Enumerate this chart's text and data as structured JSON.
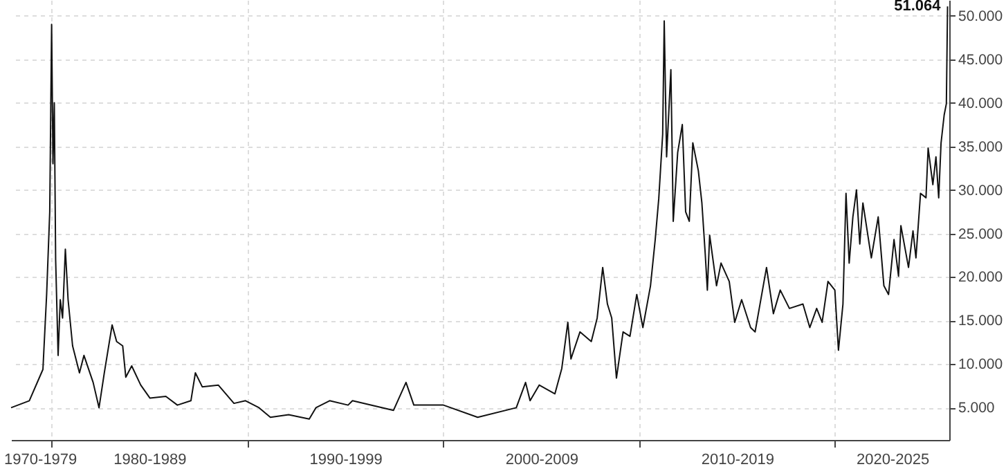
{
  "chart_data": {
    "type": "line",
    "color": "#111111",
    "grid": true,
    "xlim": [
      "1977-12-10",
      "2025-10-30"
    ],
    "ylim": [
      1.3,
      51.8
    ],
    "xticks": [
      {
        "value": "1979-06-01",
        "label": "1970-1979"
      },
      {
        "value": "1980-01-01",
        "label": null
      },
      {
        "value": "1985-01-01",
        "label": "1980-1989"
      },
      {
        "value": "1990-01-01",
        "label": null
      },
      {
        "value": "1995-01-01",
        "label": "1990-1999"
      },
      {
        "value": "2000-01-01",
        "label": null
      },
      {
        "value": "2005-01-01",
        "label": "2000-2009"
      },
      {
        "value": "2010-01-01",
        "label": null
      },
      {
        "value": "2015-01-01",
        "label": "2010-2019"
      },
      {
        "value": "2020-01-01",
        "label": null
      },
      {
        "value": "2022-12-01",
        "label": "2020-2025"
      }
    ],
    "yticks": [
      {
        "value": 5,
        "label": "5.000"
      },
      {
        "value": 10,
        "label": "10.000"
      },
      {
        "value": 15,
        "label": "15.000"
      },
      {
        "value": 20,
        "label": "20.000"
      },
      {
        "value": 25,
        "label": "25.000"
      },
      {
        "value": 30,
        "label": "30.000"
      },
      {
        "value": 35,
        "label": "35.000"
      },
      {
        "value": 40,
        "label": "40.000"
      },
      {
        "value": 45,
        "label": "45.000"
      },
      {
        "value": 50,
        "label": "50.000"
      }
    ],
    "annotations": [
      {
        "text": "51.064",
        "x": "2025-09-28",
        "y": 51.064
      }
    ],
    "x": [
      "1977-12-10",
      "1978-11-15",
      "1979-07-27",
      "1979-10-04",
      "1979-12-01",
      "1980-01-05",
      "1980-01-30",
      "1980-02-24",
      "1980-03-20",
      "1980-05-05",
      "1980-06-14",
      "1980-07-27",
      "1980-09-17",
      "1980-11-07",
      "1981-01-30",
      "1981-06-07",
      "1981-08-30",
      "1982-02-17",
      "1982-06-07",
      "1982-09-13",
      "1983-02-06",
      "1983-05-01",
      "1983-08-22",
      "1983-10-19",
      "1984-02-06",
      "1984-07-23",
      "1985-01-12",
      "1985-11-03",
      "1986-06-07",
      "1987-02-14",
      "1987-05-08",
      "1987-09-13",
      "1988-07-08",
      "1989-04-27",
      "1989-11-28",
      "1990-08-07",
      "1991-03-07",
      "1992-02-10",
      "1993-02-28",
      "1993-07-02",
      "1994-03-15",
      "1995-02-21",
      "1995-05-15",
      "1997-06-18",
      "1998-02-06",
      "1998-07-02",
      "2000-01-05",
      "2001-10-04",
      "2003-09-24",
      "2004-03-15",
      "2004-06-07",
      "2004-11-24",
      "2005-09-13",
      "2006-01-19",
      "2006-05-12",
      "2006-07-09",
      "2006-12-24",
      "2007-07-23",
      "2007-11-10",
      "2008-02-21",
      "2008-05-19",
      "2008-08-07",
      "2008-11-03",
      "2009-03-07",
      "2009-07-13",
      "2009-11-17",
      "2010-03-11",
      "2010-07-31",
      "2010-10-27",
      "2011-01-01",
      "2011-03-15",
      "2011-04-13",
      "2011-05-27",
      "2011-08-15",
      "2011-09-28",
      "2011-12-20",
      "2012-03-15",
      "2012-05-16",
      "2012-07-23",
      "2012-09-27",
      "2013-01-08",
      "2013-03-15",
      "2013-05-16",
      "2013-06-25",
      "2013-08-07",
      "2013-12-13",
      "2014-03-07",
      "2014-08-07",
      "2014-11-17",
      "2015-03-26",
      "2015-09-09",
      "2015-12-02",
      "2016-07-02",
      "2016-11-07",
      "2017-03-15",
      "2017-09-02",
      "2018-05-12",
      "2018-09-17",
      "2019-01-23",
      "2019-05-05",
      "2019-08-22",
      "2019-12-28",
      "2020-03-04",
      "2020-05-27",
      "2020-07-23",
      "2020-09-20",
      "2020-11-28",
      "2021-02-03",
      "2021-04-06",
      "2021-06-03",
      "2021-11-07",
      "2022-03-15",
      "2022-06-29",
      "2022-09-24",
      "2023-01-04",
      "2023-03-29",
      "2023-05-12",
      "2023-10-01",
      "2023-12-24",
      "2024-02-17",
      "2024-05-12",
      "2024-08-22",
      "2024-10-01",
      "2024-12-28",
      "2025-02-24",
      "2025-04-16",
      "2025-05-30",
      "2025-07-27",
      "2025-09-06",
      "2025-09-28"
    ],
    "values": [
      5.0,
      5.8,
      9.4,
      18,
      27.5,
      49,
      33,
      40,
      22,
      11,
      17.4,
      15.3,
      23.2,
      17.4,
      12.1,
      9.0,
      11,
      7.9,
      5.0,
      9,
      14.5,
      12.6,
      12.1,
      8.5,
      9.8,
      7.6,
      6.1,
      6.3,
      5.3,
      5.8,
      9,
      7.4,
      7.6,
      5.5,
      5.8,
      5.0,
      3.9,
      4.2,
      3.7,
      5.0,
      5.8,
      5.3,
      5.8,
      4.7,
      7.9,
      5.3,
      5.3,
      3.9,
      5.0,
      7.9,
      5.8,
      7.6,
      6.6,
      9.5,
      14.8,
      10.6,
      13.7,
      12.6,
      15.3,
      21.1,
      16.9,
      15.3,
      8.4,
      13.7,
      13.2,
      18,
      14.2,
      19,
      24.3,
      29,
      36.4,
      49.4,
      33.8,
      43.8,
      26.4,
      34.3,
      37.5,
      27.5,
      26.4,
      35.4,
      32.2,
      28.5,
      22.7,
      18.5,
      24.8,
      19,
      21.6,
      19.5,
      14.8,
      17.4,
      14.2,
      13.7,
      21.1,
      15.8,
      18.5,
      16.4,
      16.9,
      14.2,
      16.4,
      14.8,
      19.5,
      18.5,
      11.6,
      16.9,
      29.6,
      21.6,
      26.9,
      30,
      23.8,
      28.5,
      22.2,
      26.9,
      19,
      18,
      24.3,
      20.1,
      25.9,
      21.1,
      25.3,
      22.2,
      29.6,
      29.1,
      34.8,
      30.6,
      33.8,
      29.1,
      35.4,
      38.6,
      39.9,
      51.064
    ]
  }
}
